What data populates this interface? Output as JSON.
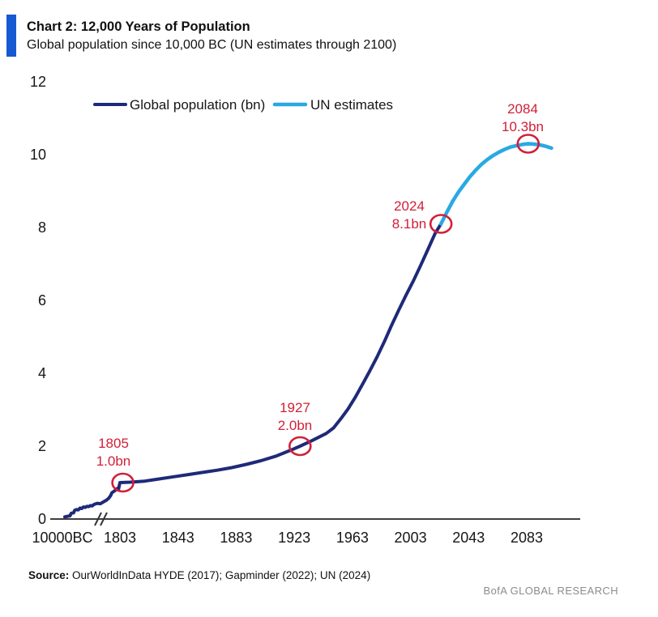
{
  "header": {
    "title": "Chart 2: 12,000 Years of Population",
    "subtitle": "Global population since 10,000 BC (UN estimates through 2100)"
  },
  "footer": {
    "source_label": "Source:",
    "source_text": "OurWorldInData HYDE (2017); Gapminder (2022); UN (2024)",
    "brand": "BofA GLOBAL RESEARCH"
  },
  "colors": {
    "accent_bar": "#1659d2",
    "historical_line": "#1e2a78",
    "estimate_line": "#29a9e2",
    "annotation_red": "#d02038",
    "axis": "#3f3f3f",
    "text": "#161616"
  },
  "chart_data": {
    "type": "line",
    "title": "Chart 2: 12,000 Years of Population",
    "subtitle": "Global population since 10,000 BC (UN estimates through 2100)",
    "x_axis": {
      "tick_labels": [
        "10000BC",
        "1803",
        "1843",
        "1883",
        "1923",
        "1963",
        "2003",
        "2043",
        "2083"
      ],
      "broken_axis": true
    },
    "y_axis": {
      "min": 0,
      "max": 12,
      "ticks": [
        0,
        2,
        4,
        6,
        8,
        10,
        12
      ]
    },
    "legend_position": "top",
    "grid": false,
    "series": [
      {
        "name": "Global population (bn)",
        "color": "#1e2a78",
        "x_unit": "year",
        "points": [
          [
            -10000,
            0.06
          ],
          [
            -8200,
            0.09
          ],
          [
            -7800,
            0.16
          ],
          [
            -7000,
            0.17
          ],
          [
            -6600,
            0.24
          ],
          [
            -6000,
            0.26
          ],
          [
            -5400,
            0.25
          ],
          [
            -4800,
            0.3
          ],
          [
            -4200,
            0.29
          ],
          [
            -3600,
            0.33
          ],
          [
            -3000,
            0.32
          ],
          [
            -2400,
            0.35
          ],
          [
            -1800,
            0.34
          ],
          [
            -1200,
            0.37
          ],
          [
            -600,
            0.36
          ],
          [
            0,
            0.4
          ],
          [
            300,
            0.43
          ],
          [
            600,
            0.42
          ],
          [
            900,
            0.47
          ],
          [
            1200,
            0.52
          ],
          [
            1400,
            0.57
          ],
          [
            1600,
            0.65
          ],
          [
            1700,
            0.72
          ],
          [
            1740,
            0.78
          ],
          [
            1770,
            0.84
          ],
          [
            1785,
            0.82
          ],
          [
            1795,
            0.92
          ],
          [
            1803,
            1.0
          ],
          [
            1810,
            1.01
          ],
          [
            1820,
            1.04
          ],
          [
            1830,
            1.1
          ],
          [
            1840,
            1.16
          ],
          [
            1850,
            1.22
          ],
          [
            1860,
            1.28
          ],
          [
            1870,
            1.34
          ],
          [
            1880,
            1.41
          ],
          [
            1890,
            1.5
          ],
          [
            1900,
            1.6
          ],
          [
            1910,
            1.72
          ],
          [
            1920,
            1.88
          ],
          [
            1927,
            2.0
          ],
          [
            1935,
            2.15
          ],
          [
            1945,
            2.35
          ],
          [
            1950,
            2.5
          ],
          [
            1955,
            2.75
          ],
          [
            1960,
            3.02
          ],
          [
            1965,
            3.34
          ],
          [
            1970,
            3.7
          ],
          [
            1975,
            4.07
          ],
          [
            1980,
            4.45
          ],
          [
            1985,
            4.87
          ],
          [
            1990,
            5.32
          ],
          [
            1995,
            5.74
          ],
          [
            2000,
            6.15
          ],
          [
            2005,
            6.54
          ],
          [
            2010,
            6.96
          ],
          [
            2015,
            7.4
          ],
          [
            2020,
            7.84
          ],
          [
            2024,
            8.1
          ]
        ]
      },
      {
        "name": "UN estimates",
        "color": "#29a9e2",
        "x_unit": "year",
        "points": [
          [
            2024,
            8.1
          ],
          [
            2028,
            8.42
          ],
          [
            2032,
            8.72
          ],
          [
            2036,
            8.97
          ],
          [
            2040,
            9.19
          ],
          [
            2044,
            9.4
          ],
          [
            2048,
            9.58
          ],
          [
            2052,
            9.74
          ],
          [
            2056,
            9.87
          ],
          [
            2060,
            9.98
          ],
          [
            2064,
            10.07
          ],
          [
            2068,
            10.15
          ],
          [
            2072,
            10.21
          ],
          [
            2076,
            10.25
          ],
          [
            2080,
            10.28
          ],
          [
            2084,
            10.3
          ],
          [
            2088,
            10.29
          ],
          [
            2092,
            10.27
          ],
          [
            2096,
            10.23
          ],
          [
            2100,
            10.18
          ]
        ]
      }
    ],
    "annotations": [
      {
        "year": 1805,
        "value": 1.0,
        "line1": "1805",
        "line2": "1.0bn"
      },
      {
        "year": 1927,
        "value": 2.0,
        "line1": "1927",
        "line2": "2.0bn"
      },
      {
        "year": 2024,
        "value": 8.1,
        "line1": "2024",
        "line2": "8.1bn"
      },
      {
        "year": 2084,
        "value": 10.3,
        "line1": "2084",
        "line2": "10.3bn"
      }
    ]
  }
}
